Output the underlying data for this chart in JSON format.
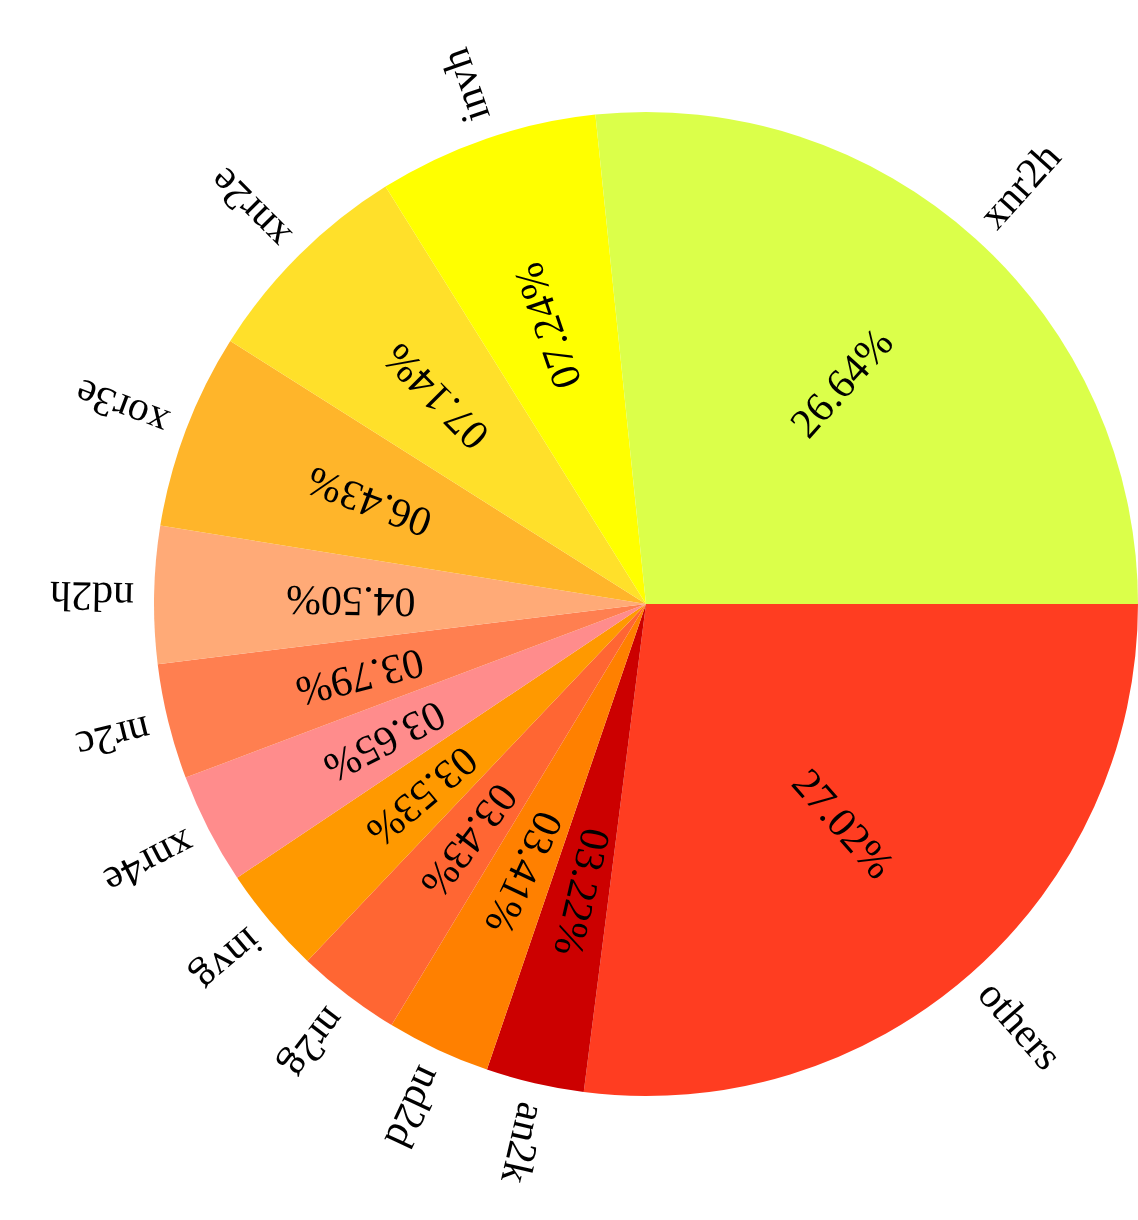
{
  "chart_data": {
    "type": "pie",
    "categories": [
      "others",
      "an2k",
      "nd2d",
      "nr2g",
      "invg",
      "xnr4e",
      "nr2c",
      "nd2h",
      "xor3e",
      "xnr2e",
      "invh",
      "xnr2h"
    ],
    "values": [
      27.02,
      3.22,
      3.41,
      3.43,
      3.53,
      3.65,
      3.79,
      4.5,
      6.43,
      7.14,
      7.24,
      26.64
    ],
    "value_labels": [
      "27.02%",
      "03.22%",
      "03.41%",
      "03.43%",
      "03.53%",
      "03.65%",
      "03.79%",
      "04.50%",
      "06.43%",
      "07.14%",
      "07.24%",
      "26.64%"
    ],
    "colors": [
      "#ff3d21",
      "#cc0000",
      "#ff8000",
      "#ff6633",
      "#ff9900",
      "#ff8c8c",
      "#ff7f50",
      "#ffaa77",
      "#ffb52a",
      "#ffe02a",
      "#ffff00",
      "#dbff4a"
    ],
    "legend": false
  }
}
